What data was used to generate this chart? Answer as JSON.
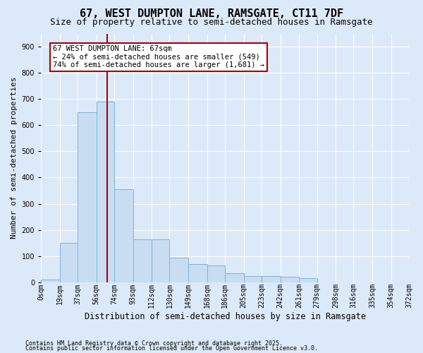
{
  "title1": "67, WEST DUMPTON LANE, RAMSGATE, CT11 7DF",
  "title2": "Size of property relative to semi-detached houses in Ramsgate",
  "xlabel": "Distribution of semi-detached houses by size in Ramsgate",
  "ylabel": "Number of semi-detached properties",
  "bin_labels": [
    "0sqm",
    "19sqm",
    "37sqm",
    "56sqm",
    "74sqm",
    "93sqm",
    "112sqm",
    "130sqm",
    "149sqm",
    "168sqm",
    "186sqm",
    "205sqm",
    "223sqm",
    "242sqm",
    "261sqm",
    "279sqm",
    "298sqm",
    "316sqm",
    "335sqm",
    "354sqm",
    "372sqm"
  ],
  "bin_edges": [
    0,
    19,
    37,
    56,
    74,
    93,
    112,
    130,
    149,
    168,
    186,
    205,
    223,
    242,
    261,
    279,
    298,
    316,
    335,
    354,
    372
  ],
  "bar_heights": [
    10,
    150,
    650,
    690,
    355,
    165,
    165,
    95,
    70,
    65,
    35,
    25,
    25,
    20,
    15,
    0,
    0,
    0,
    0,
    0
  ],
  "bar_color": "#c9ddf2",
  "bar_edge_color": "#7bb5d8",
  "vline_color": "#aa0000",
  "vline_x": 67,
  "annotation_text": "67 WEST DUMPTON LANE: 67sqm\n← 24% of semi-detached houses are smaller (549)\n74% of semi-detached houses are larger (1,681) →",
  "annotation_box_color": "#ffffff",
  "annotation_box_edge": "#aa0000",
  "ylim": [
    0,
    950
  ],
  "yticks": [
    0,
    100,
    200,
    300,
    400,
    500,
    600,
    700,
    800,
    900
  ],
  "footer1": "Contains HM Land Registry data © Crown copyright and database right 2025.",
  "footer2": "Contains public sector information licensed under the Open Government Licence v3.0.",
  "background_color": "#dce9f8",
  "plot_bg_color": "#dce9f8",
  "grid_color": "#ffffff",
  "title1_fontsize": 11,
  "title2_fontsize": 9,
  "ylabel_fontsize": 8,
  "xlabel_fontsize": 8.5,
  "tick_fontsize": 7,
  "footer_fontsize": 6,
  "annot_fontsize": 7.5
}
